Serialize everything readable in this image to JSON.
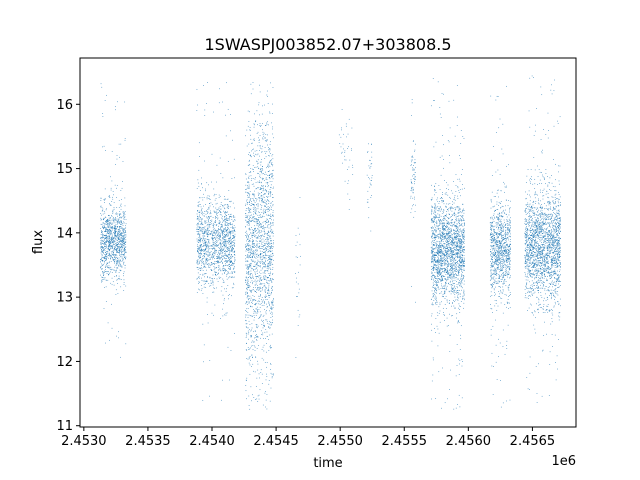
{
  "chart_data": {
    "type": "scatter",
    "title": "1SWASPJ003852.07+303808.5",
    "xlabel": "time",
    "ylabel": "flux",
    "x_offset_label": "1e6",
    "xlim": [
      2.45297,
      2.45684
    ],
    "ylim": [
      10.98,
      16.72
    ],
    "x_ticks": [
      2.453,
      2.4535,
      2.454,
      2.4545,
      2.455,
      2.4555,
      2.456,
      2.4565
    ],
    "x_tick_labels": [
      "2.4530",
      "2.4535",
      "2.4540",
      "2.4545",
      "2.4550",
      "2.4555",
      "2.4560",
      "2.4565"
    ],
    "y_ticks": [
      11,
      12,
      13,
      14,
      15,
      16
    ],
    "y_tick_labels": [
      "11",
      "12",
      "13",
      "14",
      "15",
      "16"
    ],
    "grid": false,
    "marker_color": "#1f77b4",
    "series": [
      {
        "clusters": [
          {
            "x_center": 2.45323,
            "x_halfwidth": 0.0001,
            "y_center": 13.85,
            "y_spread": 0.28,
            "y_min": 12.0,
            "y_max": 16.45,
            "n": 1100
          },
          {
            "x_center": 2.45403,
            "x_halfwidth": 0.00015,
            "y_center": 13.85,
            "y_spread": 0.35,
            "y_min": 11.3,
            "y_max": 16.4,
            "n": 1400
          },
          {
            "x_center": 2.45437,
            "x_halfwidth": 0.00011,
            "y_center": 13.8,
            "y_spread": 0.9,
            "y_min": 11.25,
            "y_max": 16.4,
            "n": 1700
          },
          {
            "x_center": 2.45467,
            "x_halfwidth": 2e-05,
            "y_center": 13.3,
            "y_spread": 0.6,
            "y_min": 11.3,
            "y_max": 15.6,
            "n": 25
          },
          {
            "x_center": 2.45504,
            "x_halfwidth": 6e-05,
            "y_center": 15.2,
            "y_spread": 0.3,
            "y_min": 13.9,
            "y_max": 16.2,
            "n": 40
          },
          {
            "x_center": 2.45523,
            "x_halfwidth": 2e-05,
            "y_center": 14.9,
            "y_spread": 0.25,
            "y_min": 13.7,
            "y_max": 15.5,
            "n": 35
          },
          {
            "x_center": 2.45557,
            "x_halfwidth": 2e-05,
            "y_center": 14.9,
            "y_spread": 0.3,
            "y_min": 12.8,
            "y_max": 16.2,
            "n": 70
          },
          {
            "x_center": 2.45584,
            "x_halfwidth": 0.00013,
            "y_center": 13.75,
            "y_spread": 0.42,
            "y_min": 11.25,
            "y_max": 16.45,
            "n": 2000
          },
          {
            "x_center": 2.45625,
            "x_halfwidth": 8e-05,
            "y_center": 13.75,
            "y_spread": 0.35,
            "y_min": 11.25,
            "y_max": 16.3,
            "n": 1000
          },
          {
            "x_center": 2.45658,
            "x_halfwidth": 0.00014,
            "y_center": 13.8,
            "y_spread": 0.42,
            "y_min": 11.35,
            "y_max": 16.45,
            "n": 2000
          }
        ]
      }
    ]
  }
}
